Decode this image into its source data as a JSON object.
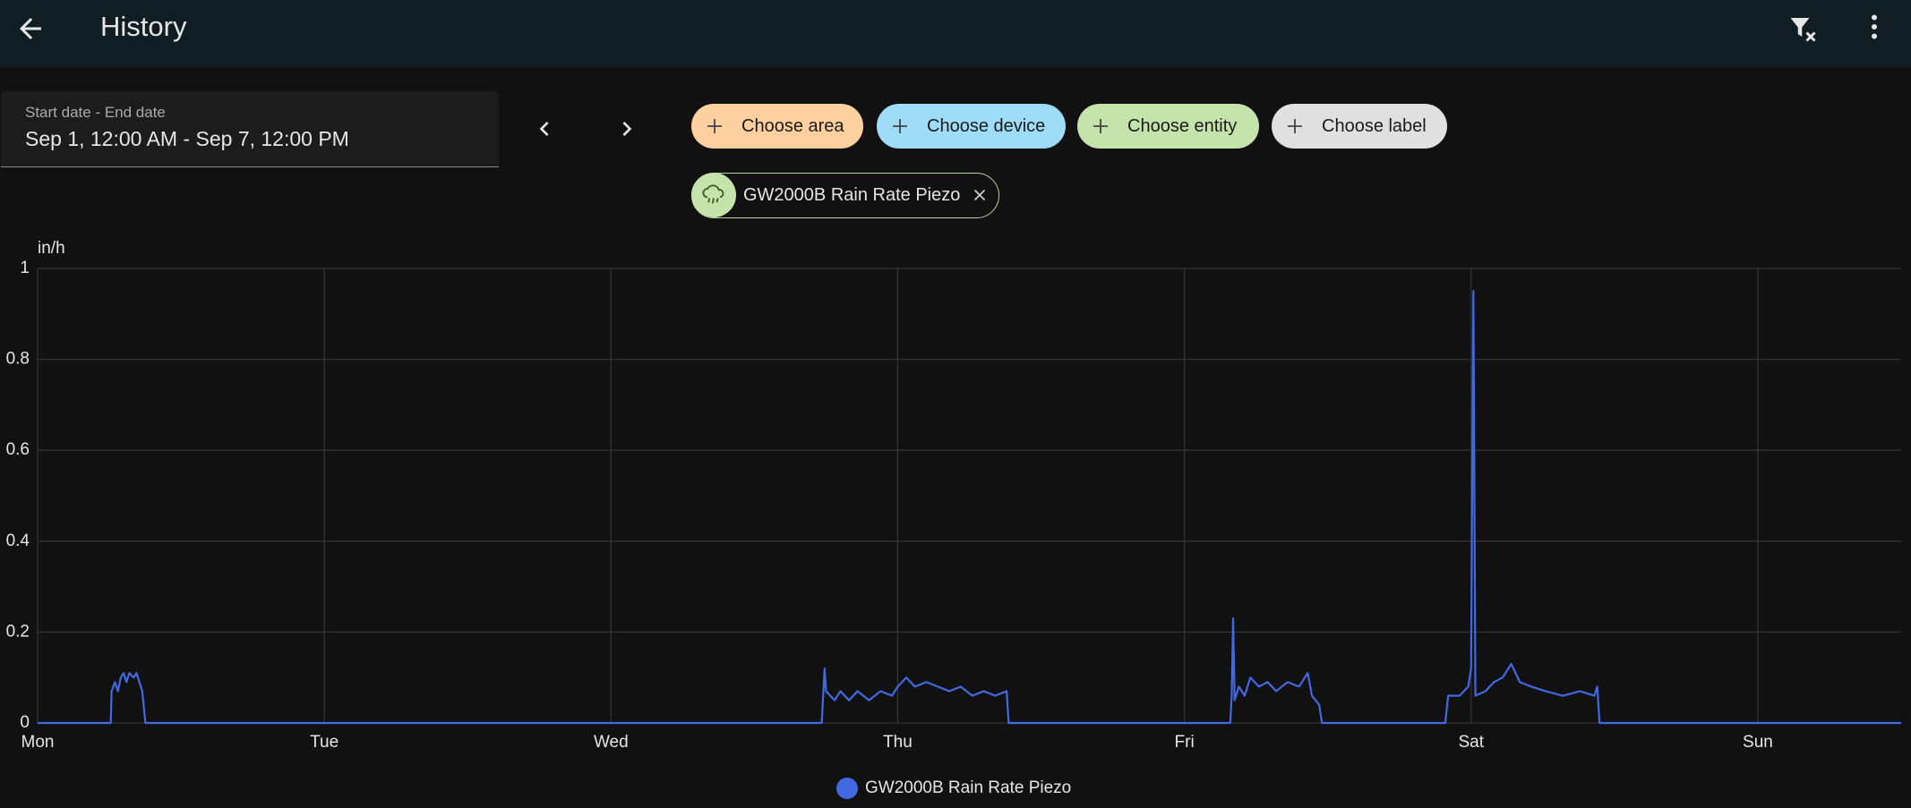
{
  "header": {
    "title": "History"
  },
  "date_picker": {
    "label": "Start date - End date",
    "value": "Sep 1, 12:00 AM - Sep 7, 12:00 PM"
  },
  "filters": [
    "Choose area",
    "Choose device",
    "Choose entity",
    "Choose label"
  ],
  "selected_entity": "GW2000B Rain Rate Piezo",
  "chart_data": {
    "type": "line",
    "y_label": "in/h",
    "xlim": [
      0,
      6.5
    ],
    "ylim": [
      0,
      1
    ],
    "xticks": [
      {
        "value": 0,
        "label": "Mon"
      },
      {
        "value": 1,
        "label": "Tue"
      },
      {
        "value": 2,
        "label": "Wed"
      },
      {
        "value": 3,
        "label": "Thu"
      },
      {
        "value": 4,
        "label": "Fri"
      },
      {
        "value": 5,
        "label": "Sat"
      },
      {
        "value": 6,
        "label": "Sun"
      }
    ],
    "yticks": [
      0,
      0.2,
      0.4,
      0.6,
      0.8,
      1
    ],
    "grid": true,
    "legend": "bottom",
    "series": [
      {
        "name": "GW2000B Rain Rate Piezo",
        "color": "#4169e1",
        "x": [
          0,
          0.255,
          0.258,
          0.27,
          0.28,
          0.29,
          0.3,
          0.31,
          0.32,
          0.335,
          0.345,
          0.355,
          0.365,
          0.376,
          2.735,
          2.74,
          2.745,
          2.75,
          2.78,
          2.8,
          2.83,
          2.86,
          2.9,
          2.94,
          2.98,
          3.0,
          3.03,
          3.06,
          3.1,
          3.14,
          3.18,
          3.22,
          3.26,
          3.3,
          3.34,
          3.38,
          3.387,
          4.16,
          4.165,
          4.17,
          4.175,
          4.19,
          4.21,
          4.23,
          4.26,
          4.29,
          4.32,
          4.36,
          4.4,
          4.43,
          4.445,
          4.47,
          4.48,
          4.91,
          4.92,
          4.96,
          4.99,
          5.0,
          5.008,
          5.015,
          5.05,
          5.08,
          5.11,
          5.14,
          5.17,
          5.21,
          5.26,
          5.32,
          5.38,
          5.43,
          5.44,
          5.448,
          6.5
        ],
        "values": [
          0,
          0,
          0.07,
          0.09,
          0.07,
          0.1,
          0.11,
          0.09,
          0.11,
          0.1,
          0.11,
          0.09,
          0.07,
          0,
          0,
          0.06,
          0.12,
          0.07,
          0.05,
          0.07,
          0.05,
          0.07,
          0.05,
          0.07,
          0.06,
          0.08,
          0.1,
          0.08,
          0.09,
          0.08,
          0.07,
          0.08,
          0.06,
          0.07,
          0.06,
          0.07,
          0,
          0,
          0.06,
          0.23,
          0.05,
          0.08,
          0.06,
          0.1,
          0.08,
          0.09,
          0.07,
          0.09,
          0.08,
          0.11,
          0.06,
          0.04,
          0,
          0,
          0.06,
          0.06,
          0.08,
          0.12,
          0.95,
          0.06,
          0.07,
          0.09,
          0.1,
          0.13,
          0.09,
          0.08,
          0.07,
          0.06,
          0.07,
          0.06,
          0.08,
          0,
          0
        ]
      }
    ]
  }
}
